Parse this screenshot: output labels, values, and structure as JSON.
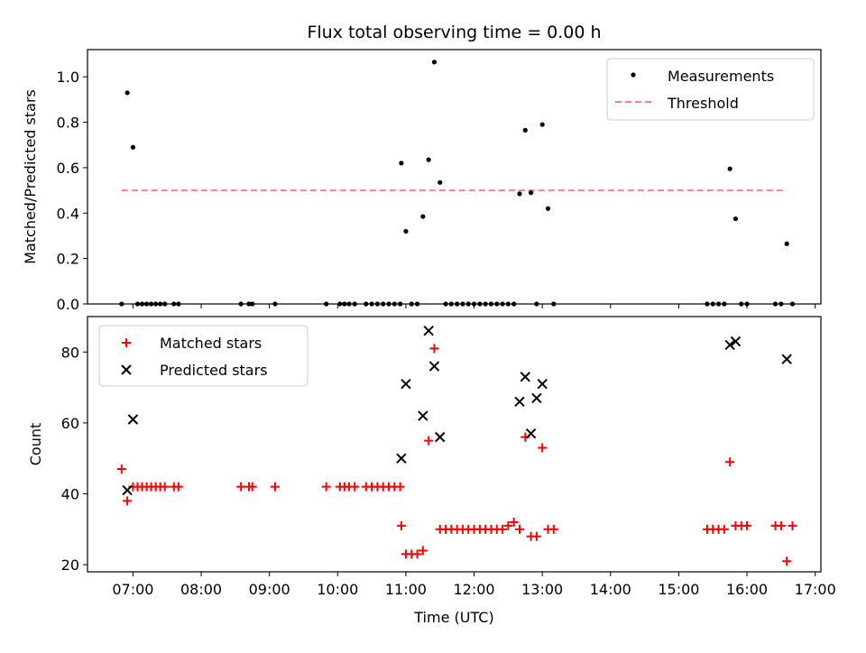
{
  "chart_data": [
    {
      "type": "scatter",
      "title": "Flux total observing time = 0.00 h",
      "xlabel": "",
      "ylabel": "Matched/Predicted stars",
      "xlim": [
        "06:20",
        "17:05"
      ],
      "ylim": [
        0,
        1.12
      ],
      "yticks": [
        0.0,
        0.2,
        0.4,
        0.6,
        0.8,
        1.0
      ],
      "ytick_labels": [
        "0.0",
        "0.2",
        "0.4",
        "0.6",
        "0.8",
        "1.0"
      ],
      "xticks": [
        "07:00",
        "08:00",
        "09:00",
        "10:00",
        "11:00",
        "12:00",
        "13:00",
        "14:00",
        "15:00",
        "16:00",
        "17:00"
      ],
      "xtick_labels_shown": false,
      "legend_position": "upper-right",
      "series": [
        {
          "name": "Measurements",
          "marker": "dot",
          "color": "#000000",
          "x": [
            "06:50",
            "06:55",
            "07:00",
            "07:04",
            "07:08",
            "07:12",
            "07:16",
            "07:20",
            "07:24",
            "07:28",
            "07:36",
            "07:40",
            "08:35",
            "08:42",
            "08:45",
            "09:05",
            "09:50",
            "10:02",
            "10:06",
            "10:10",
            "10:15",
            "10:25",
            "10:30",
            "10:35",
            "10:40",
            "10:45",
            "10:50",
            "10:55",
            "10:56",
            "11:00",
            "11:05",
            "11:10",
            "11:15",
            "11:20",
            "11:25",
            "11:30",
            "11:35",
            "11:40",
            "11:45",
            "11:50",
            "11:55",
            "12:00",
            "12:05",
            "12:10",
            "12:15",
            "12:20",
            "12:25",
            "12:30",
            "12:35",
            "12:40",
            "12:45",
            "12:50",
            "12:55",
            "13:00",
            "13:05",
            "13:10",
            "15:25",
            "15:30",
            "15:35",
            "15:40",
            "15:45",
            "15:50",
            "15:55",
            "16:00",
            "16:25",
            "16:30",
            "16:35",
            "16:40"
          ],
          "y": [
            0.0,
            0.93,
            0.69,
            0.0,
            0.0,
            0.0,
            0.0,
            0.0,
            0.0,
            0.0,
            0.0,
            0.0,
            0.0,
            0.0,
            0.0,
            0.0,
            0.0,
            0.0,
            0.0,
            0.0,
            0.0,
            0.0,
            0.0,
            0.0,
            0.0,
            0.0,
            0.0,
            0.0,
            0.62,
            0.32,
            0.0,
            0.0,
            0.385,
            0.635,
            1.065,
            0.535,
            0.0,
            0.0,
            0.0,
            0.0,
            0.0,
            0.0,
            0.0,
            0.0,
            0.0,
            0.0,
            0.0,
            0.0,
            0.0,
            0.485,
            0.765,
            0.49,
            0.0,
            0.79,
            0.42,
            0.0,
            0.0,
            0.0,
            0.0,
            0.0,
            0.595,
            0.375,
            0.0,
            0.0,
            0.0,
            0.0,
            0.265,
            0.0
          ]
        },
        {
          "name": "Threshold",
          "marker": "dashed-line",
          "color": "#ff8080",
          "x": [
            "06:50",
            "16:35"
          ],
          "y": [
            0.5,
            0.5
          ]
        }
      ]
    },
    {
      "type": "scatter",
      "title": "",
      "xlabel": "Time (UTC)",
      "ylabel": "Count",
      "xlim": [
        "06:20",
        "17:05"
      ],
      "ylim": [
        18,
        90
      ],
      "yticks": [
        20,
        40,
        60,
        80
      ],
      "ytick_labels": [
        "20",
        "40",
        "60",
        "80"
      ],
      "xticks": [
        "07:00",
        "08:00",
        "09:00",
        "10:00",
        "11:00",
        "12:00",
        "13:00",
        "14:00",
        "15:00",
        "16:00",
        "17:00"
      ],
      "xtick_labels": [
        "07:00",
        "08:00",
        "09:00",
        "10:00",
        "11:00",
        "12:00",
        "13:00",
        "14:00",
        "15:00",
        "16:00",
        "17:00"
      ],
      "legend_position": "upper-left",
      "series": [
        {
          "name": "Matched stars",
          "marker": "plus",
          "color": "#ff0000",
          "x": [
            "06:50",
            "06:55",
            "07:00",
            "07:04",
            "07:08",
            "07:12",
            "07:16",
            "07:20",
            "07:24",
            "07:28",
            "07:36",
            "07:40",
            "08:35",
            "08:42",
            "08:45",
            "09:05",
            "09:50",
            "10:02",
            "10:06",
            "10:10",
            "10:15",
            "10:25",
            "10:30",
            "10:35",
            "10:40",
            "10:45",
            "10:50",
            "10:55",
            "10:56",
            "11:00",
            "11:05",
            "11:10",
            "11:15",
            "11:20",
            "11:25",
            "11:30",
            "11:35",
            "11:40",
            "11:45",
            "11:50",
            "11:55",
            "12:00",
            "12:05",
            "12:10",
            "12:15",
            "12:20",
            "12:25",
            "12:30",
            "12:35",
            "12:40",
            "12:45",
            "12:50",
            "12:55",
            "13:00",
            "13:05",
            "13:10",
            "15:25",
            "15:30",
            "15:35",
            "15:40",
            "15:45",
            "15:50",
            "15:55",
            "16:00",
            "16:25",
            "16:30",
            "16:35",
            "16:40"
          ],
          "y": [
            47,
            38,
            42,
            42,
            42,
            42,
            42,
            42,
            42,
            42,
            42,
            42,
            42,
            42,
            42,
            42,
            42,
            42,
            42,
            42,
            42,
            42,
            42,
            42,
            42,
            42,
            42,
            42,
            31,
            23,
            23,
            23,
            24,
            55,
            81,
            30,
            30,
            30,
            30,
            30,
            30,
            30,
            30,
            30,
            30,
            30,
            30,
            31,
            32,
            30,
            56,
            28,
            28,
            53,
            30,
            30,
            30,
            30,
            30,
            30,
            49,
            31,
            31,
            31,
            31,
            31,
            21,
            31
          ]
        },
        {
          "name": "Predicted stars",
          "marker": "x",
          "color": "#000000",
          "x": [
            "06:55",
            "07:00",
            "10:56",
            "11:00",
            "11:15",
            "11:20",
            "11:25",
            "11:30",
            "12:40",
            "12:45",
            "12:50",
            "12:55",
            "13:00",
            "15:45",
            "15:50",
            "16:35"
          ],
          "y": [
            41,
            61,
            50,
            71,
            62,
            86,
            76,
            56,
            66,
            73,
            57,
            67,
            71,
            82,
            83,
            78
          ]
        }
      ]
    }
  ]
}
